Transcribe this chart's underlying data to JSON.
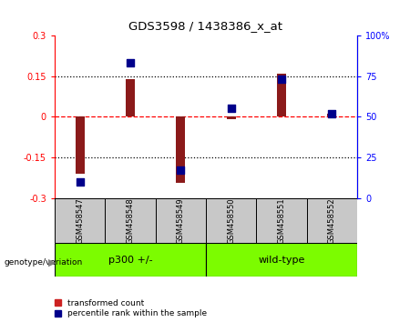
{
  "title": "GDS3598 / 1438386_x_at",
  "samples": [
    "GSM458547",
    "GSM458548",
    "GSM458549",
    "GSM458550",
    "GSM458551",
    "GSM458552"
  ],
  "red_values": [
    -0.21,
    0.14,
    -0.245,
    -0.01,
    0.16,
    0.01
  ],
  "blue_values": [
    10,
    83,
    17,
    55,
    73,
    52
  ],
  "ylim_left": [
    -0.3,
    0.3
  ],
  "ylim_right": [
    0,
    100
  ],
  "yticks_left": [
    -0.3,
    -0.15,
    0,
    0.15,
    0.3
  ],
  "yticks_right": [
    0,
    25,
    50,
    75,
    100
  ],
  "ytick_labels_left": [
    "-0.3",
    "-0.15",
    "0",
    "0.15",
    "0.3"
  ],
  "ytick_labels_right": [
    "0",
    "25",
    "50",
    "75",
    "100%"
  ],
  "hlines": [
    0.15,
    0,
    -0.15
  ],
  "hline_styles": [
    "dotted",
    "dashed",
    "dotted"
  ],
  "hline_colors": [
    "black",
    "red",
    "black"
  ],
  "bar_color": "#8B1A1A",
  "dot_color": "#00008B",
  "bar_width": 0.18,
  "dot_size": 28,
  "legend_red": "transformed count",
  "legend_blue": "percentile rank within the sample",
  "background_color": "#ffffff",
  "plot_bg_color": "#ffffff",
  "label_area_color": "#C8C8C8",
  "group_area_color": "#7CFC00",
  "group1_label": "p300 +/-",
  "group2_label": "wild-type",
  "genotype_label": "genotype/variation"
}
